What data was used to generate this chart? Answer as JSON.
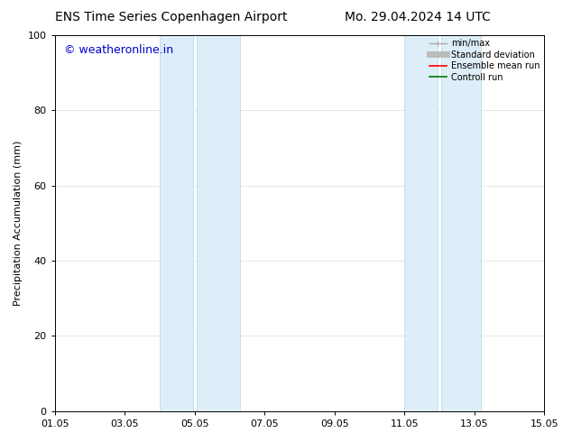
{
  "title_left": "ENS Time Series Copenhagen Airport",
  "title_right": "Mo. 29.04.2024 14 UTC",
  "ylabel": "Precipitation Accumulation (mm)",
  "watermark": "© weatheronline.in",
  "watermark_color": "#0000cc",
  "ylim": [
    0,
    100
  ],
  "yticks": [
    0,
    20,
    40,
    60,
    80,
    100
  ],
  "xtick_labels": [
    "01.05",
    "03.05",
    "05.05",
    "07.05",
    "09.05",
    "11.05",
    "13.05",
    "15.05"
  ],
  "xtick_positions_days": [
    1,
    3,
    5,
    7,
    9,
    11,
    13,
    15
  ],
  "shaded_regions": [
    {
      "start_day": 4.0,
      "end_day": 4.95
    },
    {
      "start_day": 5.05,
      "end_day": 6.3
    },
    {
      "start_day": 11.0,
      "end_day": 11.95
    },
    {
      "start_day": 12.05,
      "end_day": 13.2
    }
  ],
  "shaded_color": "#ddeef8",
  "shaded_edge_color": "#b8d4e8",
  "grid_color": "#dddddd",
  "bg_color": "#ffffff",
  "legend_items": [
    {
      "label": "min/max",
      "color": "#aaaaaa",
      "lw": 1.0,
      "style": "minmax"
    },
    {
      "label": "Standard deviation",
      "color": "#bbbbbb",
      "lw": 5.0,
      "style": "line"
    },
    {
      "label": "Ensemble mean run",
      "color": "#ff0000",
      "lw": 1.2,
      "style": "line"
    },
    {
      "label": "Controll run",
      "color": "#007700",
      "lw": 1.2,
      "style": "line"
    }
  ],
  "title_fontsize": 10,
  "axis_label_fontsize": 8,
  "tick_fontsize": 8,
  "legend_fontsize": 7,
  "watermark_fontsize": 9
}
